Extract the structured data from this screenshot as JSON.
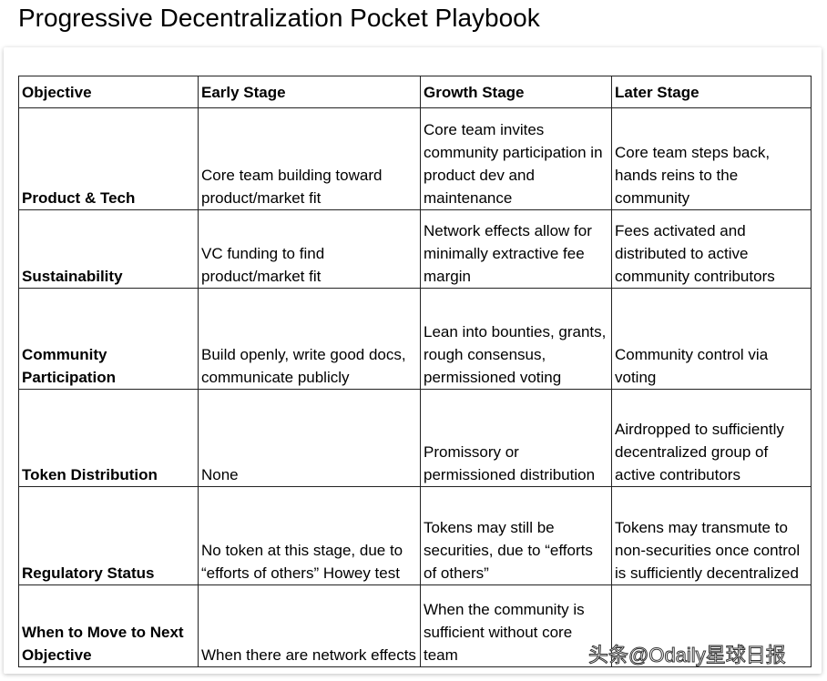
{
  "title": "Progressive Decentralization Pocket Playbook",
  "headers": [
    "Objective",
    "Early Stage",
    "Growth Stage",
    "Later Stage"
  ],
  "rows": [
    [
      "Product & Tech",
      "Core team building toward product/market fit",
      "Core team invites community participation in product dev and maintenance",
      "Core team steps back, hands reins to the community"
    ],
    [
      "Sustainability",
      "VC funding to find product/market fit",
      "Network effects allow for minimally extractive fee margin",
      "Fees activated and distributed to active community contributors"
    ],
    [
      "Community Participation",
      "Build openly, write good docs, communicate publicly",
      "Lean into bounties, grants, rough consensus, permissioned voting",
      "Community control via voting"
    ],
    [
      "Token Distribution",
      "None",
      "Promissory or permissioned distribution",
      "Airdropped to sufficiently decentralized group of active contributors"
    ],
    [
      "Regulatory Status",
      "No token at this stage, due to “efforts of others” Howey test",
      "Tokens may still be securities, due to “efforts of others”",
      "Tokens may transmute to non-securities once control is sufficiently decentralized"
    ],
    [
      "When to Move to Next Objective",
      "When there are network effects",
      "When the community is sufficient without core team",
      ""
    ]
  ],
  "watermark": "头条@Odaily星球日报"
}
